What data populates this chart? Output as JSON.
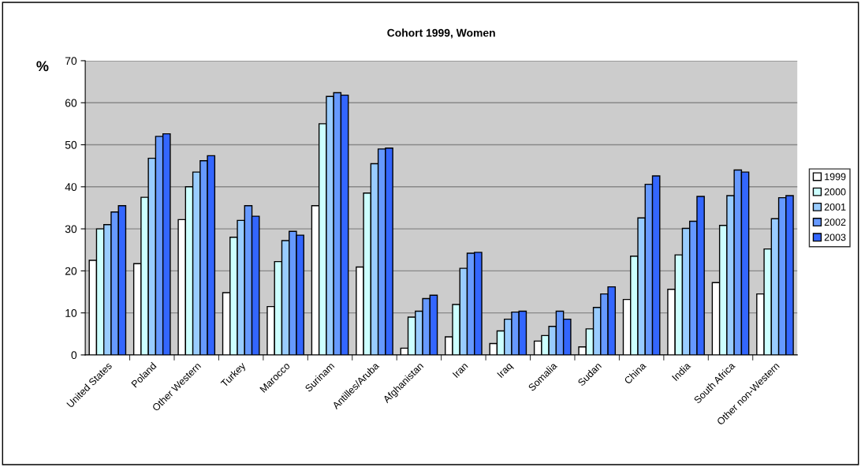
{
  "chart_data": {
    "type": "bar",
    "title": "Cohort 1999, Women",
    "ylabel": "%",
    "categories": [
      "United States",
      "Poland",
      "Other Western",
      "Turkey",
      "Marocco",
      "Surinam",
      "Antilles/Aruba",
      "Afghanistan",
      "Iran",
      "Iraq",
      "Somalia",
      "Sudan",
      "China",
      "India",
      "South Africa",
      "Other non-Western"
    ],
    "series": [
      {
        "name": "1999",
        "color": "#ffffff",
        "values": [
          22.5,
          21.7,
          32.2,
          14.8,
          11.5,
          35.5,
          20.9,
          1.6,
          4.3,
          2.7,
          3.3,
          1.9,
          13.2,
          15.6,
          17.2,
          14.5
        ]
      },
      {
        "name": "2000",
        "color": "#ccffff",
        "values": [
          30,
          37.5,
          40,
          28,
          22.2,
          55,
          38.5,
          9,
          12,
          5.7,
          4.6,
          6.2,
          23.5,
          23.8,
          30.8,
          25.2
        ]
      },
      {
        "name": "2001",
        "color": "#99ccff",
        "values": [
          31,
          46.8,
          43.5,
          32,
          27.2,
          61.5,
          45.5,
          10.4,
          20.6,
          8.5,
          6.8,
          11.3,
          32.6,
          30.1,
          37.9,
          32.4
        ]
      },
      {
        "name": "2002",
        "color": "#6699ff",
        "values": [
          34,
          52,
          46.2,
          35.5,
          29.4,
          62.4,
          49,
          13.4,
          24.2,
          10.2,
          10.4,
          14.5,
          40.6,
          31.8,
          44,
          37.4
        ]
      },
      {
        "name": "2003",
        "color": "#3366ff",
        "values": [
          35.5,
          52.6,
          47.4,
          33,
          28.5,
          61.8,
          49.2,
          14.2,
          24.4,
          10.4,
          8.5,
          16.2,
          42.6,
          37.7,
          43.5,
          37.9
        ]
      }
    ],
    "ylim": [
      0,
      70
    ],
    "yticks": [
      0,
      10,
      20,
      30,
      40,
      50,
      60,
      70
    ],
    "grid": "y",
    "legend": "right"
  }
}
